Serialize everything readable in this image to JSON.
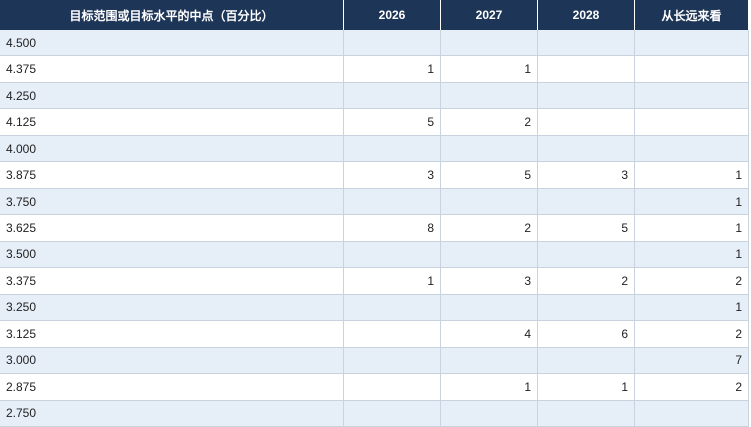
{
  "table": {
    "header": [
      "目标范围或目标水平的中点（百分比）",
      "2026",
      "2027",
      "2028",
      "从长远来看"
    ],
    "rows": [
      [
        "4.500",
        null,
        null,
        null,
        null
      ],
      [
        "4.375",
        1,
        1,
        null,
        null
      ],
      [
        "4.250",
        null,
        null,
        null,
        null
      ],
      [
        "4.125",
        5,
        2,
        null,
        null
      ],
      [
        "4.000",
        null,
        null,
        null,
        null
      ],
      [
        "3.875",
        3,
        5,
        3,
        1
      ],
      [
        "3.750",
        null,
        null,
        null,
        1
      ],
      [
        "3.625",
        8,
        2,
        5,
        1
      ],
      [
        "3.500",
        null,
        null,
        null,
        1
      ],
      [
        "3.375",
        1,
        3,
        2,
        2
      ],
      [
        "3.250",
        null,
        null,
        null,
        1
      ],
      [
        "3.125",
        null,
        4,
        6,
        2
      ],
      [
        "3.000",
        null,
        null,
        null,
        7
      ],
      [
        "2.875",
        null,
        1,
        1,
        2
      ],
      [
        "2.750",
        null,
        null,
        null,
        null
      ]
    ]
  }
}
